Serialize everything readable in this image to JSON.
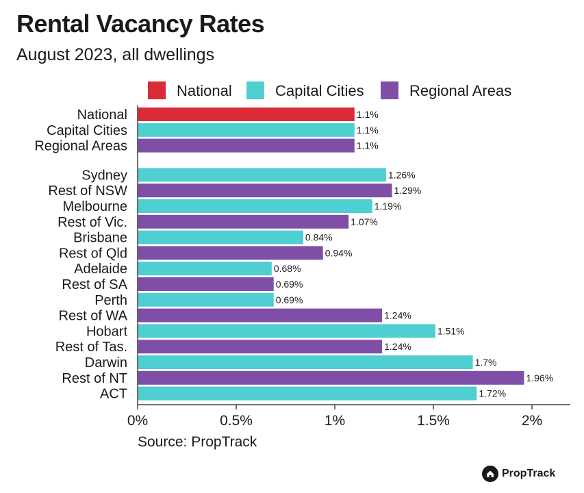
{
  "title": "Rental Vacancy Rates",
  "subtitle": "August 2023, all dwellings",
  "source": "Source: PropTrack",
  "brand": "PropTrack",
  "colors": {
    "national": "#dc2b38",
    "capital": "#4fcfd1",
    "regional": "#7f4fa8",
    "axis": "#444444",
    "text": "#1a1a1a"
  },
  "chart_data": {
    "type": "bar",
    "orientation": "horizontal",
    "legend": [
      {
        "key": "national",
        "label": "National"
      },
      {
        "key": "capital",
        "label": "Capital Cities"
      },
      {
        "key": "regional",
        "label": "Regional Areas"
      }
    ],
    "categories": [
      "National",
      "Capital Cities",
      "Regional Areas",
      "Sydney",
      "Rest of NSW",
      "Melbourne",
      "Rest of Vic.",
      "Brisbane",
      "Rest of Qld",
      "Adelaide",
      "Rest of SA",
      "Perth",
      "Rest of WA",
      "Hobart",
      "Rest of Tas.",
      "Darwin",
      "Rest of NT",
      "ACT"
    ],
    "values": [
      1.1,
      1.1,
      1.1,
      1.26,
      1.29,
      1.19,
      1.07,
      0.84,
      0.94,
      0.68,
      0.69,
      0.69,
      1.24,
      1.51,
      1.24,
      1.7,
      1.96,
      1.72
    ],
    "value_labels": [
      "1.1%",
      "1.1%",
      "1.1%",
      "1.26%",
      "1.29%",
      "1.19%",
      "1.07%",
      "0.84%",
      "0.94%",
      "0.68%",
      "0.69%",
      "0.69%",
      "1.24%",
      "1.51%",
      "1.24%",
      "1.7%",
      "1.96%",
      "1.72%"
    ],
    "groups": [
      "national",
      "capital",
      "regional",
      "capital",
      "regional",
      "capital",
      "regional",
      "capital",
      "regional",
      "capital",
      "regional",
      "capital",
      "regional",
      "capital",
      "regional",
      "capital",
      "regional",
      "capital"
    ],
    "xlim": [
      0,
      2.2
    ],
    "xticks": [
      0,
      0.5,
      1,
      1.5,
      2
    ],
    "xtick_labels": [
      "0%",
      "0.5%",
      "1%",
      "1.5%",
      "2%"
    ],
    "xlabel": "",
    "ylabel": ""
  }
}
